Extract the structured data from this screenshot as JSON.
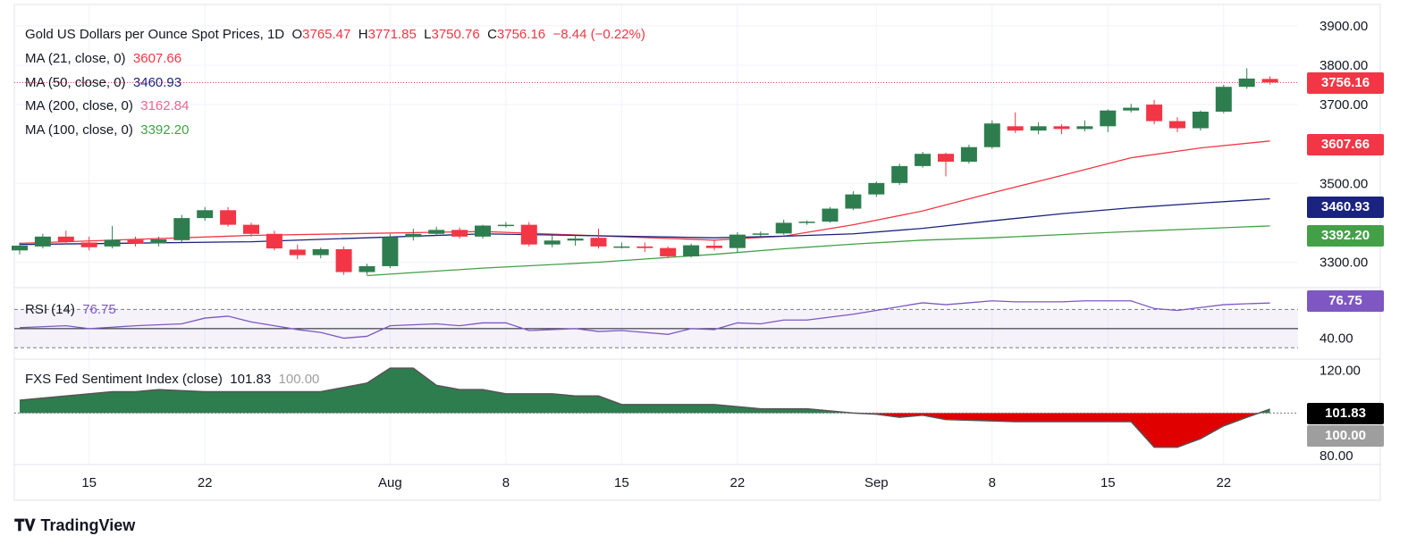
{
  "header": {
    "symbol": "Gold US Dollars per Ounce Spot Prices, 1D",
    "o_label": "O",
    "o_value": "3765.47",
    "h_label": "H",
    "h_value": "3771.85",
    "l_label": "L",
    "l_value": "3750.76",
    "c_label": "C",
    "c_value": "3756.16",
    "change": "−8.44 (−0.22%)"
  },
  "ma_legend": [
    {
      "label": "MA (21, close, 0)",
      "value": "3607.66",
      "color": "#f23645"
    },
    {
      "label": "MA (50, close, 0)",
      "value": "3460.93",
      "color": "#1a237e"
    },
    {
      "label": "MA (200, close, 0)",
      "value": "3162.84",
      "color": "#f06292"
    },
    {
      "label": "MA (100, close, 0)",
      "value": "3392.20",
      "color": "#43a047"
    }
  ],
  "rsi_legend": {
    "label": "RSI (14)",
    "value": "76.75"
  },
  "fxs_legend": {
    "label": "FXS Fed Sentiment Index (close)",
    "value": "101.83",
    "base": "100.00"
  },
  "price_tags": [
    {
      "value": "3756.16",
      "color": "#f23645"
    },
    {
      "value": "3607.66",
      "color": "#f23645"
    },
    {
      "value": "3460.93",
      "color": "#1a237e"
    },
    {
      "value": "3392.20",
      "color": "#43a047"
    },
    {
      "value": "76.75",
      "color": "#7e57c2"
    },
    {
      "value": "101.83",
      "color": "#000000"
    },
    {
      "value": "100.00",
      "color": "#9e9e9e"
    }
  ],
  "brand": "TradingView",
  "chart_data": {
    "type": "candlestick",
    "title": "Gold US Dollars per Ounce Spot Prices, 1D",
    "price_axis": {
      "ticks": [
        "3900.00",
        "3800.00",
        "3700.00",
        "3500.00",
        "3300.00"
      ],
      "tick_values": [
        3900,
        3800,
        3700,
        3500,
        3300
      ],
      "range": [
        3240,
        3920
      ]
    },
    "rsi_axis": {
      "ticks": [
        "40.00"
      ],
      "tick_values": [
        40
      ],
      "range": [
        20,
        90
      ],
      "bands": [
        70,
        30
      ]
    },
    "fxs_axis": {
      "ticks": [
        "120.00",
        "80.00"
      ],
      "tick_values": [
        120,
        80
      ],
      "range": [
        78,
        124
      ],
      "base": 100
    },
    "x_ticks": [
      {
        "label": "15",
        "index": 3
      },
      {
        "label": "22",
        "index": 8
      },
      {
        "label": "Aug",
        "index": 16
      },
      {
        "label": "8",
        "index": 21
      },
      {
        "label": "15",
        "index": 26
      },
      {
        "label": "22",
        "index": 31
      },
      {
        "label": "Sep",
        "index": 37
      },
      {
        "label": "8",
        "index": 42
      },
      {
        "label": "15",
        "index": 47
      },
      {
        "label": "22",
        "index": 52
      }
    ],
    "candles": [
      [
        3330,
        3350,
        3320,
        3342
      ],
      [
        3340,
        3372,
        3335,
        3365
      ],
      [
        3365,
        3380,
        3345,
        3352
      ],
      [
        3350,
        3365,
        3330,
        3338
      ],
      [
        3340,
        3392,
        3335,
        3357
      ],
      [
        3357,
        3365,
        3340,
        3348
      ],
      [
        3348,
        3365,
        3340,
        3358
      ],
      [
        3356,
        3420,
        3350,
        3412
      ],
      [
        3412,
        3440,
        3405,
        3432
      ],
      [
        3432,
        3440,
        3390,
        3395
      ],
      [
        3395,
        3400,
        3365,
        3372
      ],
      [
        3372,
        3380,
        3330,
        3335
      ],
      [
        3332,
        3345,
        3308,
        3318
      ],
      [
        3318,
        3337,
        3310,
        3333
      ],
      [
        3333,
        3340,
        3268,
        3275
      ],
      [
        3275,
        3296,
        3268,
        3290
      ],
      [
        3290,
        3372,
        3285,
        3364
      ],
      [
        3364,
        3385,
        3355,
        3372
      ],
      [
        3372,
        3390,
        3368,
        3382
      ],
      [
        3382,
        3388,
        3360,
        3365
      ],
      [
        3365,
        3395,
        3360,
        3393
      ],
      [
        3395,
        3402,
        3388,
        3395
      ],
      [
        3395,
        3402,
        3340,
        3345
      ],
      [
        3345,
        3368,
        3338,
        3355
      ],
      [
        3355,
        3368,
        3342,
        3360
      ],
      [
        3362,
        3385,
        3335,
        3340
      ],
      [
        3340,
        3350,
        3335,
        3340
      ],
      [
        3340,
        3350,
        3326,
        3336
      ],
      [
        3336,
        3340,
        3312,
        3315
      ],
      [
        3315,
        3347,
        3312,
        3343
      ],
      [
        3342,
        3355,
        3330,
        3336
      ],
      [
        3336,
        3376,
        3325,
        3370
      ],
      [
        3370,
        3378,
        3365,
        3373
      ],
      [
        3373,
        3408,
        3370,
        3400
      ],
      [
        3400,
        3406,
        3395,
        3403
      ],
      [
        3403,
        3440,
        3400,
        3436
      ],
      [
        3436,
        3480,
        3432,
        3472
      ],
      [
        3472,
        3505,
        3466,
        3501
      ],
      [
        3501,
        3550,
        3496,
        3544
      ],
      [
        3544,
        3580,
        3540,
        3575
      ],
      [
        3575,
        3578,
        3518,
        3555
      ],
      [
        3555,
        3598,
        3550,
        3592
      ],
      [
        3592,
        3660,
        3588,
        3652
      ],
      [
        3645,
        3680,
        3628,
        3634
      ],
      [
        3634,
        3655,
        3625,
        3645
      ],
      [
        3645,
        3650,
        3625,
        3638
      ],
      [
        3638,
        3660,
        3632,
        3645
      ],
      [
        3645,
        3688,
        3630,
        3685
      ],
      [
        3685,
        3702,
        3680,
        3692
      ],
      [
        3700,
        3712,
        3650,
        3658
      ],
      [
        3658,
        3668,
        3630,
        3640
      ],
      [
        3640,
        3685,
        3634,
        3682
      ],
      [
        3682,
        3750,
        3678,
        3745
      ],
      [
        3745,
        3792,
        3740,
        3766
      ],
      [
        3765,
        3772,
        3751,
        3756
      ]
    ],
    "series": [
      {
        "name": "MA (21, close, 0)",
        "color": "#f23645",
        "points": [
          [
            0,
            3348
          ],
          [
            10,
            3368
          ],
          [
            20,
            3378
          ],
          [
            30,
            3356
          ],
          [
            33,
            3366
          ],
          [
            36,
            3395
          ],
          [
            39,
            3430
          ],
          [
            42,
            3476
          ],
          [
            45,
            3520
          ],
          [
            48,
            3565
          ],
          [
            51,
            3590
          ],
          [
            54,
            3607.66
          ]
        ]
      },
      {
        "name": "MA (50, close, 0)",
        "color": "#1a237e",
        "points": [
          [
            0,
            3345
          ],
          [
            10,
            3352
          ],
          [
            20,
            3372
          ],
          [
            30,
            3362
          ],
          [
            33,
            3366
          ],
          [
            36,
            3372
          ],
          [
            39,
            3386
          ],
          [
            42,
            3405
          ],
          [
            45,
            3423
          ],
          [
            48,
            3438
          ],
          [
            51,
            3450
          ],
          [
            54,
            3460.93
          ]
        ]
      },
      {
        "name": "MA (100, close, 0)",
        "color": "#43a047",
        "points": [
          [
            15,
            3266
          ],
          [
            20,
            3285
          ],
          [
            25,
            3300
          ],
          [
            30,
            3320
          ],
          [
            33,
            3334
          ],
          [
            36,
            3346
          ],
          [
            39,
            3356
          ],
          [
            42,
            3362
          ],
          [
            45,
            3370
          ],
          [
            48,
            3378
          ],
          [
            51,
            3385
          ],
          [
            54,
            3392.2
          ]
        ]
      },
      {
        "name": "RSI (14)",
        "color": "#7e57c2",
        "points": [
          [
            0,
            51
          ],
          [
            2,
            53
          ],
          [
            3,
            50
          ],
          [
            5,
            53
          ],
          [
            7,
            55
          ],
          [
            8,
            61
          ],
          [
            9,
            63
          ],
          [
            10,
            57
          ],
          [
            11,
            53
          ],
          [
            12,
            49
          ],
          [
            13,
            46
          ],
          [
            14,
            40
          ],
          [
            15,
            42
          ],
          [
            16,
            53
          ],
          [
            18,
            55
          ],
          [
            19,
            53
          ],
          [
            20,
            56
          ],
          [
            21,
            56
          ],
          [
            22,
            48
          ],
          [
            24,
            50
          ],
          [
            25,
            47
          ],
          [
            26,
            48
          ],
          [
            27,
            46
          ],
          [
            28,
            44
          ],
          [
            29,
            50
          ],
          [
            30,
            49
          ],
          [
            31,
            56
          ],
          [
            32,
            55
          ],
          [
            33,
            59
          ],
          [
            34,
            59
          ],
          [
            35,
            62
          ],
          [
            36,
            65
          ],
          [
            37,
            69
          ],
          [
            38,
            73
          ],
          [
            39,
            77
          ],
          [
            40,
            75
          ],
          [
            41,
            77
          ],
          [
            42,
            79
          ],
          [
            43,
            78
          ],
          [
            44,
            78
          ],
          [
            45,
            78
          ],
          [
            46,
            79
          ],
          [
            47,
            79
          ],
          [
            48,
            79
          ],
          [
            49,
            71
          ],
          [
            50,
            69
          ],
          [
            51,
            72
          ],
          [
            52,
            75
          ],
          [
            53,
            76
          ],
          [
            54,
            76.75
          ]
        ]
      },
      {
        "name": "FXS Fed Sentiment Index (close)",
        "color": "#2e7d4f",
        "points": [
          [
            0,
            106
          ],
          [
            2,
            108
          ],
          [
            3,
            109
          ],
          [
            4,
            110
          ],
          [
            5,
            110
          ],
          [
            6,
            111
          ],
          [
            8,
            110
          ],
          [
            9,
            110
          ],
          [
            11,
            110
          ],
          [
            12,
            110
          ],
          [
            13,
            110
          ],
          [
            15,
            114
          ],
          [
            16,
            121
          ],
          [
            17,
            121
          ],
          [
            18,
            113
          ],
          [
            19,
            111
          ],
          [
            20,
            111
          ],
          [
            21,
            109
          ],
          [
            23,
            109
          ],
          [
            24,
            108
          ],
          [
            25,
            108
          ],
          [
            26,
            104
          ],
          [
            28,
            104
          ],
          [
            30,
            104
          ],
          [
            31,
            103
          ],
          [
            32,
            102
          ],
          [
            34,
            102
          ],
          [
            35,
            101
          ],
          [
            36,
            100
          ],
          [
            37,
            99.5
          ],
          [
            38,
            98
          ],
          [
            39,
            99
          ],
          [
            40,
            97
          ],
          [
            43,
            96
          ],
          [
            46,
            96
          ],
          [
            47,
            96
          ],
          [
            48,
            96
          ],
          [
            49,
            84
          ],
          [
            50,
            84
          ],
          [
            51,
            88
          ],
          [
            52,
            94
          ],
          [
            53,
            98
          ],
          [
            54,
            101.83
          ]
        ]
      }
    ]
  }
}
